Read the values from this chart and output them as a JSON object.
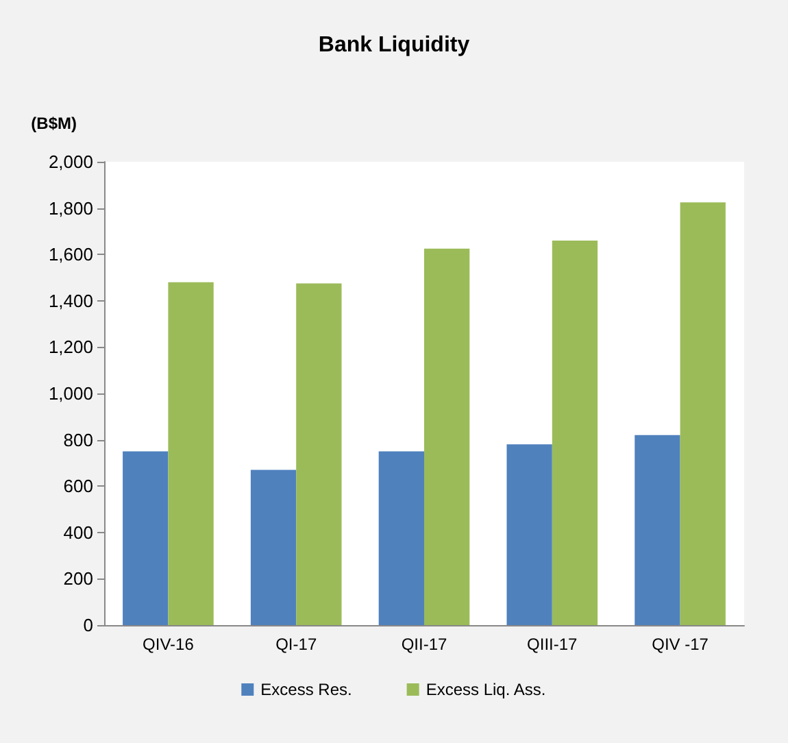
{
  "chart_data": {
    "type": "bar",
    "title": "Bank Liquidity",
    "ylabel": "(B$M)",
    "categories": [
      "QIV-16",
      "QI-17",
      "QII-17",
      "QIII-17",
      "QIV -17"
    ],
    "series": [
      {
        "name": "Excess Res.",
        "color": "#4f81bd",
        "values": [
          750,
          670,
          750,
          780,
          820
        ]
      },
      {
        "name": "Excess Liq. Ass.",
        "color": "#9bbb59",
        "values": [
          1480,
          1475,
          1625,
          1660,
          1825
        ]
      }
    ],
    "ylim": [
      0,
      2000
    ],
    "yticks": [
      0,
      200,
      400,
      600,
      800,
      {
        "value": 1000,
        "label": "1,000"
      },
      {
        "value": 1200,
        "label": "1,200"
      },
      {
        "value": 1400,
        "label": "1,400"
      },
      {
        "value": 1600,
        "label": "1,600"
      },
      {
        "value": 1800,
        "label": "1,800"
      },
      {
        "value": 2000,
        "label": "2,000"
      }
    ],
    "grid": false,
    "legend": "bottom"
  }
}
